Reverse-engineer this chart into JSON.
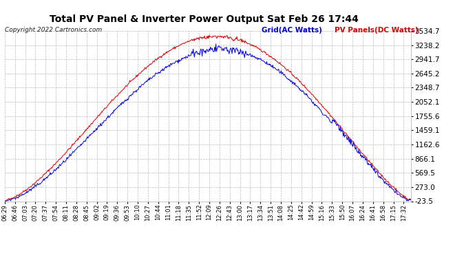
{
  "title": "Total PV Panel & Inverter Power Output Sat Feb 26 17:44",
  "copyright": "Copyright 2022 Cartronics.com",
  "legend_blue": "Grid(AC Watts)",
  "legend_red": "PV Panels(DC Watts)",
  "y_min": -23.5,
  "y_max": 3534.7,
  "y_ticks": [
    -23.5,
    273.0,
    569.5,
    866.1,
    1162.6,
    1459.1,
    1755.6,
    2052.1,
    2348.7,
    2645.2,
    2941.7,
    3238.2,
    3534.7
  ],
  "background_color": "#ffffff",
  "grid_color": "#bbbbbb",
  "blue_color": "#0000dd",
  "red_color": "#dd0000",
  "title_color": "#000000",
  "x_labels": [
    "06:29",
    "06:46",
    "07:03",
    "07:20",
    "07:37",
    "07:54",
    "08:11",
    "08:28",
    "08:45",
    "09:02",
    "09:19",
    "09:36",
    "09:53",
    "10:10",
    "10:27",
    "10:44",
    "11:01",
    "11:18",
    "11:35",
    "11:52",
    "12:09",
    "12:26",
    "12:43",
    "13:00",
    "13:17",
    "13:34",
    "13:51",
    "14:08",
    "14:25",
    "14:42",
    "14:59",
    "15:16",
    "15:33",
    "15:50",
    "16:07",
    "16:24",
    "16:41",
    "16:58",
    "17:15",
    "17:32"
  ]
}
